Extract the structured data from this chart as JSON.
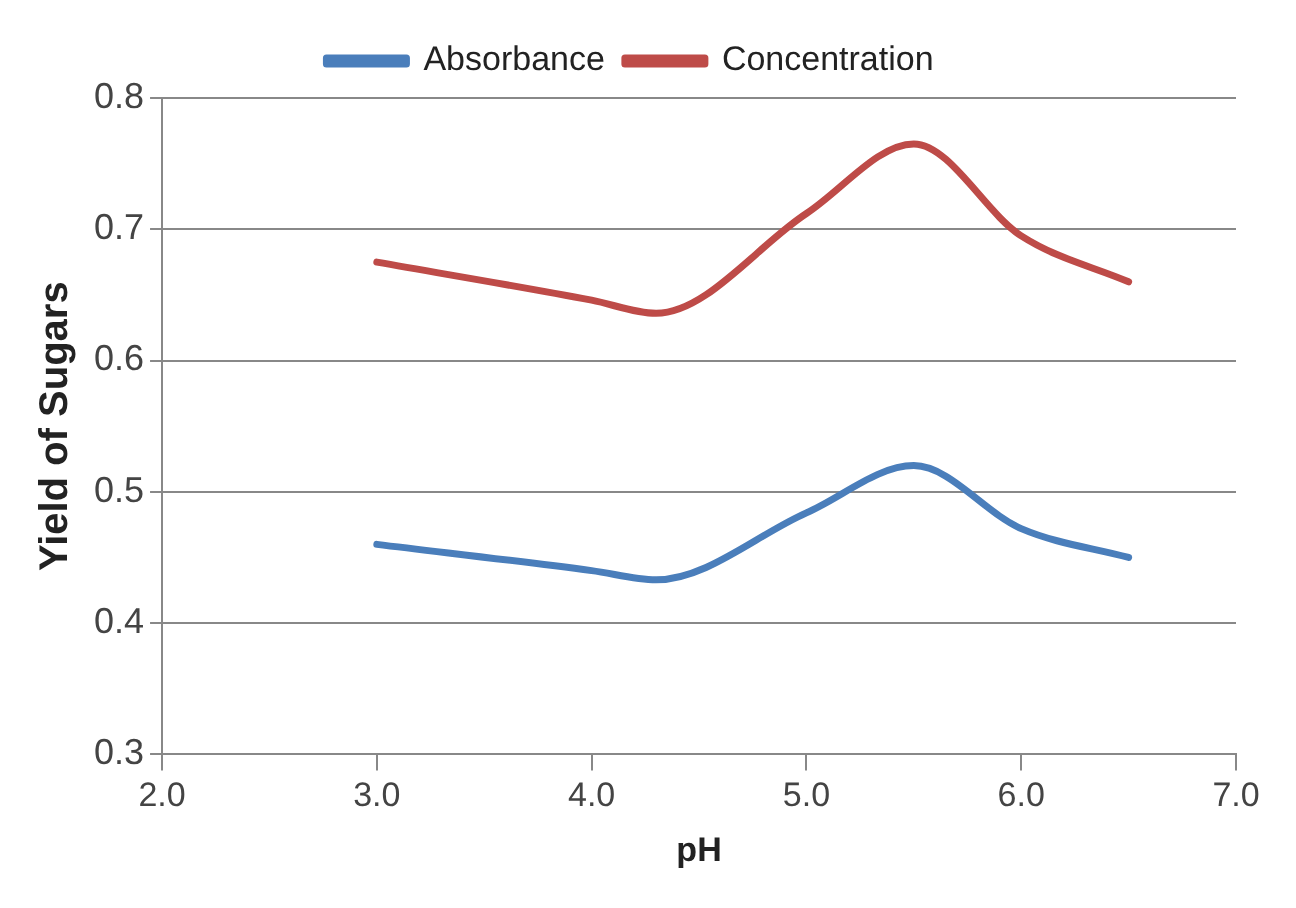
{
  "chart_data": {
    "type": "line",
    "xlabel": "pH",
    "ylabel": "Yield of Sugars",
    "x": [
      3.0,
      4.0,
      4.3,
      5.0,
      5.5,
      6.0,
      6.5
    ],
    "series": [
      {
        "name": "Absorbance",
        "color": "#4a7ebb",
        "values": [
          0.46,
          0.44,
          0.433,
          0.484,
          0.52,
          0.472,
          0.45
        ]
      },
      {
        "name": "Concentration",
        "color": "#be4b48",
        "values": [
          0.675,
          0.646,
          0.636,
          0.712,
          0.765,
          0.695,
          0.66
        ]
      }
    ],
    "xlim": [
      2.0,
      7.0
    ],
    "xticks": [
      {
        "value": 2,
        "label": "2.0"
      },
      {
        "value": 3,
        "label": "3.0"
      },
      {
        "value": 4,
        "label": "4.0"
      },
      {
        "value": 5,
        "label": "5.0"
      },
      {
        "value": 6,
        "label": "6.0"
      },
      {
        "value": 7,
        "label": "7.0"
      }
    ],
    "ylim": [
      0.3,
      0.8
    ],
    "yticks": [
      0.3,
      0.4,
      0.5,
      0.6,
      0.7,
      0.8
    ],
    "grid": "y",
    "legend": "top",
    "marker": "none",
    "line_style": "solid"
  }
}
